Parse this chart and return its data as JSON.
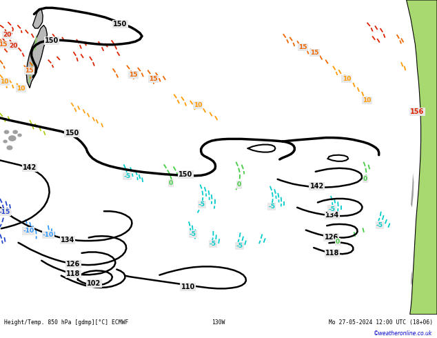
{
  "title_left": "Height/Temp. 850 hPa [gdmp][°C] ECMWF",
  "title_mid": "130W",
  "title_right": "Mo 27-05-2024 12:00 UTC (18+06)",
  "copyright": "©weatheronline.co.uk",
  "bg_color": "#e8e8e8",
  "grid_color": "#ffffff",
  "bottom_text_color": "#000000",
  "copyright_color": "#0000cc",
  "fig_width": 6.34,
  "fig_height": 4.9,
  "dpi": 100
}
